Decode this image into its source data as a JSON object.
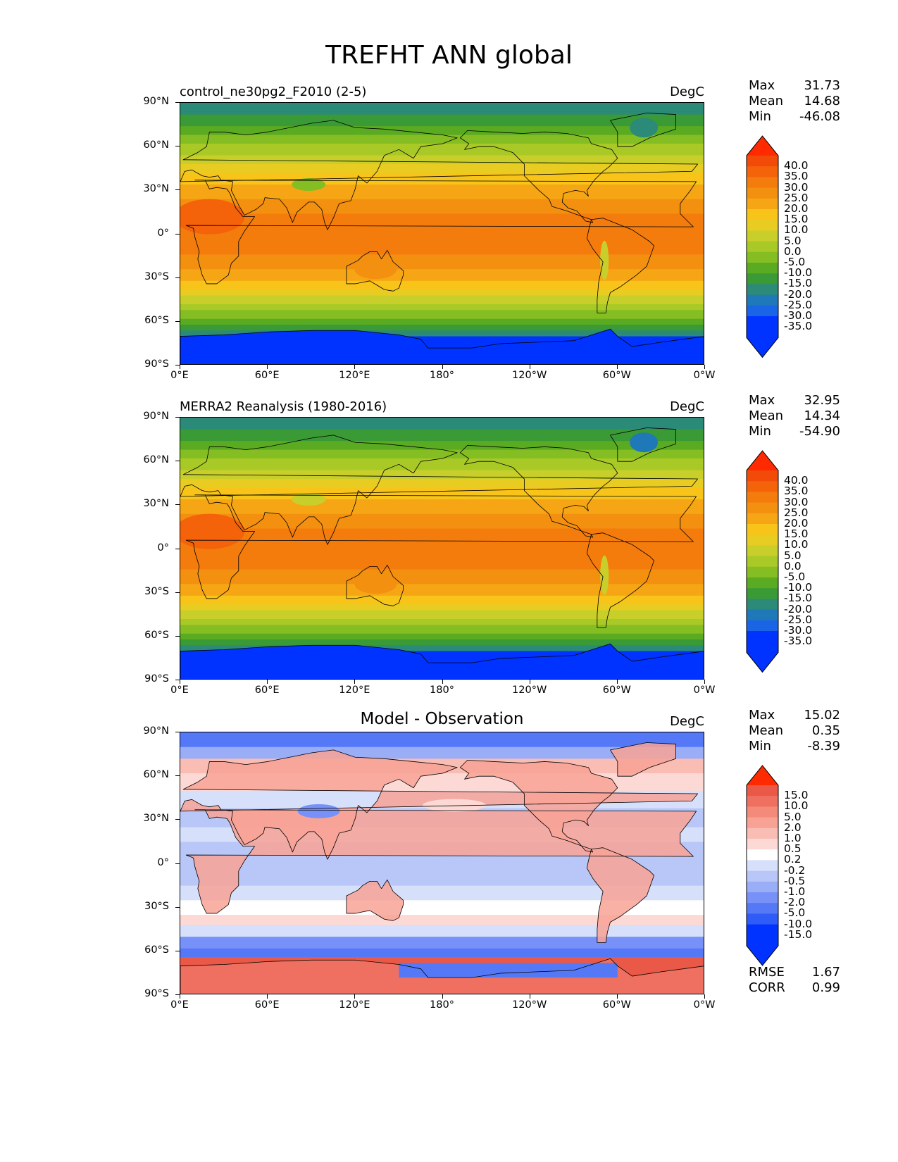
{
  "figure_title": "TREFHT ANN global",
  "axes": {
    "lat_labels": [
      "90°N",
      "60°N",
      "30°N",
      "0°",
      "30°S",
      "60°S",
      "90°S"
    ],
    "lon_labels": [
      "0°E",
      "60°E",
      "120°E",
      "180°",
      "120°W",
      "60°W",
      "0°W"
    ]
  },
  "panels": [
    {
      "title": "control_ne30pg2_F2010 (2-5)",
      "title_style": "left",
      "units": "DegC",
      "stats": {
        "max_label": "Max",
        "max": "31.73",
        "mean_label": "Mean",
        "mean": "14.68",
        "min_label": "Min",
        "min": "-46.08"
      },
      "colorbar_labels": [
        "40.0",
        "35.0",
        "30.0",
        "25.0",
        "20.0",
        "15.0",
        "10.0",
        "5.0",
        "0.0",
        "-5.0",
        "-10.0",
        "-15.0",
        "-20.0",
        "-25.0",
        "-30.0",
        "-35.0"
      ]
    },
    {
      "title": "MERRA2 Reanalysis (1980-2016)",
      "title_style": "left",
      "units": "DegC",
      "stats": {
        "max_label": "Max",
        "max": "32.95",
        "mean_label": "Mean",
        "mean": "14.34",
        "min_label": "Min",
        "min": "-54.90"
      },
      "colorbar_labels": [
        "40.0",
        "35.0",
        "30.0",
        "25.0",
        "20.0",
        "15.0",
        "10.0",
        "5.0",
        "0.0",
        "-5.0",
        "-10.0",
        "-15.0",
        "-20.0",
        "-25.0",
        "-30.0",
        "-35.0"
      ]
    },
    {
      "title": "Model - Observation",
      "title_style": "center",
      "units": "DegC",
      "stats": {
        "max_label": "Max",
        "max": "15.02",
        "mean_label": "Mean",
        "mean": "0.35",
        "min_label": "Min",
        "min": "-8.39"
      },
      "colorbar_labels": [
        "15.0",
        "10.0",
        "5.0",
        "2.0",
        "1.0",
        "0.5",
        "0.2",
        "-0.2",
        "-0.5",
        "-1.0",
        "-2.0",
        "-5.0",
        "-10.0",
        "-15.0"
      ],
      "metrics": {
        "rmse_label": "RMSE",
        "rmse": "1.67",
        "corr_label": "CORR",
        "corr": "0.99"
      }
    }
  ],
  "colors": {
    "temp_scale": [
      "#0033ff",
      "#1a64e6",
      "#1f78b8",
      "#2b8a78",
      "#3a9a35",
      "#5aab22",
      "#85be22",
      "#a9c927",
      "#c8cf2a",
      "#e8cc22",
      "#f8c41a",
      "#f6a614",
      "#f49010",
      "#f47c0c",
      "#f4620a",
      "#f24a08",
      "#ff2a00"
    ],
    "diff_scale": [
      "#0033ff",
      "#2f5cf7",
      "#5578f7",
      "#7891f8",
      "#9aaef8",
      "#b8c7f8",
      "#d6e0fb",
      "#ffffff",
      "#fcd9d4",
      "#f9bdb3",
      "#f8a295",
      "#f38a7a",
      "#ef7060",
      "#ea5848",
      "#ff2a00"
    ]
  }
}
